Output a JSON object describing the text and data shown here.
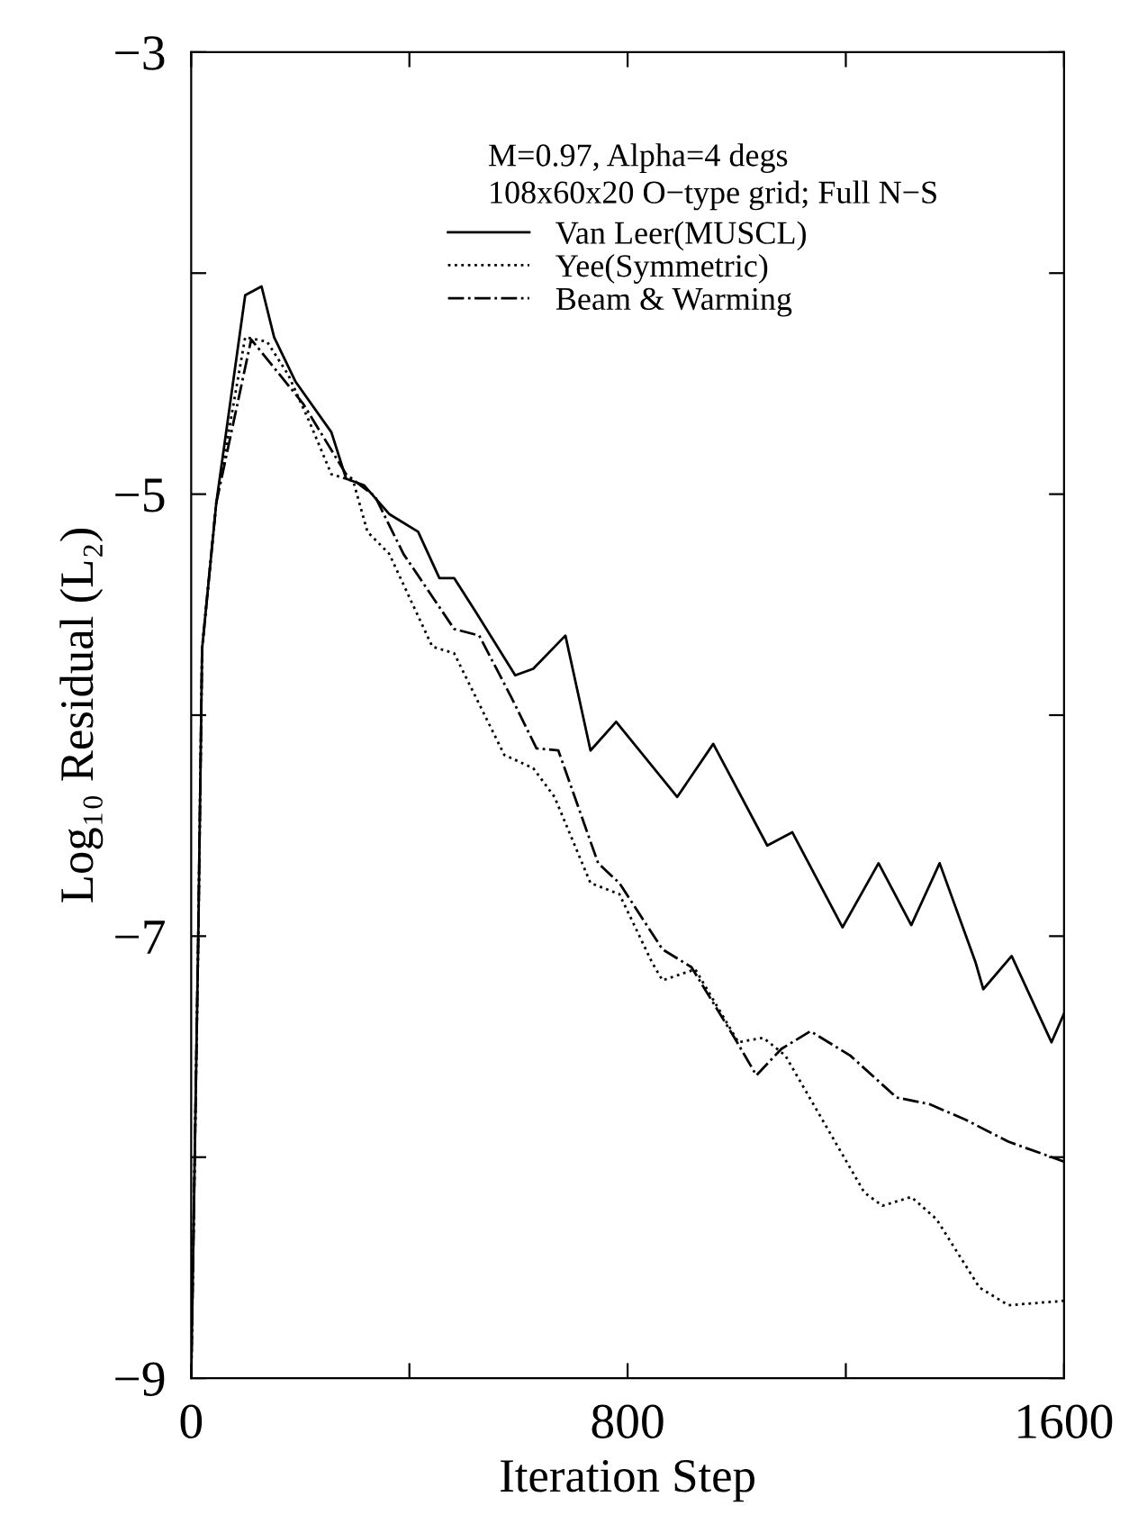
{
  "chart_data": {
    "type": "line",
    "xlabel": "Iteration Step",
    "ylabel": "Log₁₀ Residual (L₂)",
    "annotations": [
      "M=0.97, Alpha=4 degs",
      "108x60x20 O−type grid; Full N−S"
    ],
    "xlim": [
      0,
      1600
    ],
    "ylim": [
      -9,
      -3
    ],
    "xticks": [
      0,
      {
        "value": 400,
        "label": null
      },
      800,
      {
        "value": 1200,
        "label": null
      },
      1600
    ],
    "yticks": [
      -9,
      {
        "value": -8,
        "label": null
      },
      -7,
      {
        "value": -6,
        "label": null
      },
      -5,
      {
        "value": -4,
        "label": null
      },
      -3
    ],
    "grid": false,
    "legend": "top",
    "marker": "none",
    "series": [
      {
        "name": "Van Leer(MUSCL)",
        "color": "#000000",
        "line_style": "solid",
        "x": [
          0,
          13,
          20,
          46,
          99,
          129,
          152,
          191,
          257,
          284,
          317,
          363,
          416,
          455,
          482,
          521,
          594,
          627,
          686,
          732,
          779,
          891,
          957,
          1056,
          1102,
          1194,
          1260,
          1320,
          1372,
          1438,
          1452,
          1504,
          1577,
          1600
        ],
        "values": [
          -9,
          -7.0,
          -5.7,
          -5.04,
          -4.1,
          -4.06,
          -4.29,
          -4.49,
          -4.72,
          -4.93,
          -4.96,
          -5.09,
          -5.17,
          -5.38,
          -5.38,
          -5.53,
          -5.82,
          -5.79,
          -5.64,
          -6.16,
          -6.03,
          -6.37,
          -6.13,
          -6.59,
          -6.53,
          -6.96,
          -6.67,
          -6.95,
          -6.67,
          -7.12,
          -7.24,
          -7.09,
          -7.48,
          -7.35
        ]
      },
      {
        "name": "Yee(Symmetric)",
        "color": "#000000",
        "line_style": "dotted",
        "x": [
          0,
          13,
          20,
          46,
          99,
          139,
          178,
          218,
          257,
          297,
          323,
          363,
          442,
          482,
          574,
          627,
          666,
          732,
          785,
          845,
          864,
          924,
          1003,
          1049,
          1089,
          1234,
          1267,
          1320,
          1366,
          1445,
          1498,
          1600
        ],
        "values": [
          -9,
          -7.0,
          -5.7,
          -5.04,
          -4.29,
          -4.31,
          -4.46,
          -4.68,
          -4.91,
          -4.94,
          -5.17,
          -5.27,
          -5.69,
          -5.72,
          -6.18,
          -6.24,
          -6.37,
          -6.76,
          -6.81,
          -7.12,
          -7.2,
          -7.15,
          -7.48,
          -7.46,
          -7.54,
          -8.16,
          -8.22,
          -8.18,
          -8.28,
          -8.59,
          -8.67,
          -8.65
        ]
      },
      {
        "name": "Beam & Warming",
        "color": "#000000",
        "line_style": "dashdot",
        "x": [
          0,
          13,
          20,
          46,
          110,
          205,
          284,
          337,
          389,
          482,
          528,
          587,
          633,
          673,
          746,
          785,
          864,
          917,
          996,
          1036,
          1082,
          1135,
          1208,
          1293,
          1353,
          1419,
          1498,
          1600
        ],
        "values": [
          -9,
          -7.0,
          -5.7,
          -5.04,
          -4.3,
          -4.59,
          -4.91,
          -5.01,
          -5.27,
          -5.61,
          -5.64,
          -5.92,
          -6.15,
          -6.16,
          -6.67,
          -6.76,
          -7.06,
          -7.14,
          -7.46,
          -7.63,
          -7.51,
          -7.43,
          -7.54,
          -7.73,
          -7.76,
          -7.83,
          -7.93,
          -8.02
        ]
      }
    ]
  }
}
